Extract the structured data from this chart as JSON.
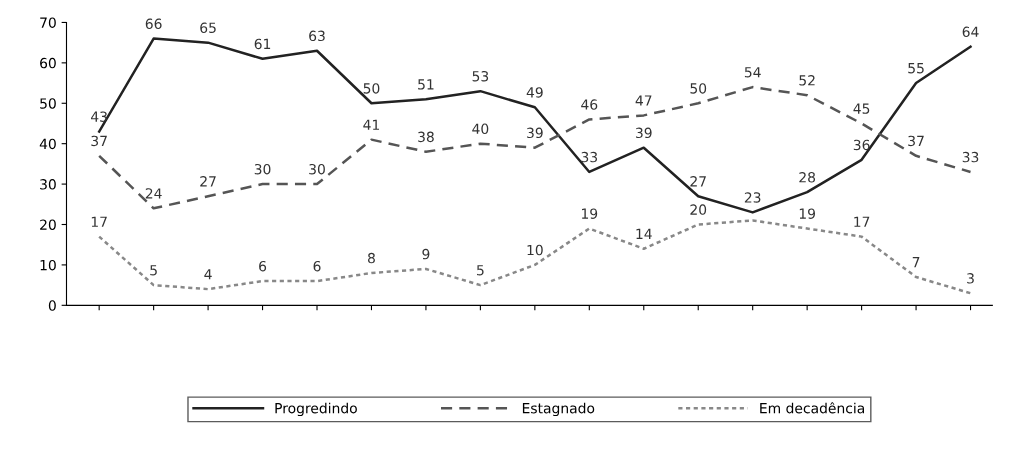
{
  "chart_data": {
    "type": "line",
    "categories": [
      null,
      null,
      null,
      null,
      null,
      null,
      null,
      null,
      null,
      null,
      null,
      null,
      null,
      null,
      null,
      null,
      null
    ],
    "series": [
      {
        "name": "Progredindo",
        "color": "#222222",
        "line_style": "solid",
        "values": [
          43,
          66,
          65,
          61,
          63,
          50,
          51,
          53,
          49,
          33,
          39,
          27,
          23,
          28,
          36,
          55,
          64
        ],
        "value_labels": [
          "43",
          "66",
          "65",
          "61",
          "63",
          "50",
          "51",
          "53",
          "49",
          "33",
          "39",
          "27",
          "23",
          "28",
          "36",
          "55",
          "64"
        ]
      },
      {
        "name": "Estagnado",
        "color": "#555555",
        "line_style": "dashed",
        "values": [
          37,
          24,
          27,
          30,
          30,
          41,
          38,
          40,
          39,
          46,
          47,
          50,
          54,
          52,
          45,
          37,
          33
        ],
        "value_labels": [
          "37",
          "24",
          "27",
          "30",
          "30",
          "41",
          "38",
          "40",
          "39",
          "46",
          "47",
          "50",
          "54",
          "52",
          "45",
          "37",
          "33"
        ]
      },
      {
        "name": "Em decadência",
        "color": "#888888",
        "line_style": "dotted",
        "values": [
          17,
          5,
          4,
          6,
          6,
          8,
          9,
          5,
          10,
          19,
          14,
          20,
          21,
          19,
          17,
          7,
          3
        ],
        "value_labels": [
          "17",
          "5",
          "4",
          "6",
          "6",
          "8",
          "9",
          "5",
          "10",
          "19",
          "14",
          "20",
          null,
          "19",
          "17",
          "7",
          "3"
        ]
      }
    ],
    "ylim": [
      0,
      70
    ],
    "yticks": [
      0,
      10,
      20,
      30,
      40,
      50,
      60,
      70
    ],
    "grid": false,
    "legend": "bottom",
    "marker": "none"
  }
}
